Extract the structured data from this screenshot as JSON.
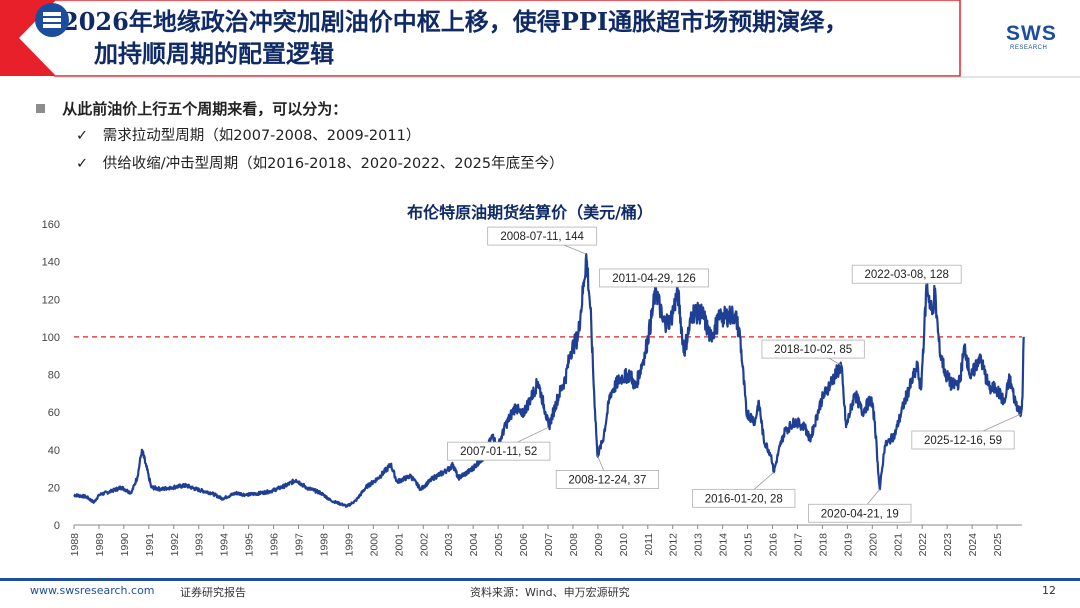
{
  "header": {
    "title_line1": "2026年地缘政治冲突加剧油价中枢上移，使得PPI通胀超市场预期演绎，",
    "title_line2": "加持顺周期的配置逻辑",
    "logo_text": "SWS",
    "logo_sub": "RESEARCH"
  },
  "bullets": {
    "main": "从此前油价上行五个周期来看，可以分为：",
    "items": [
      "需求拉动型周期（如2007-2008、2009-2011）",
      "供给收缩/冲击型周期（如2016-2018、2020-2022、2025年底至今）"
    ],
    "check": "✓"
  },
  "footer": {
    "url": "www.swsresearch.com",
    "report_type": "证券研究报告",
    "source": "资料来源：Wind、申万宏源研究",
    "page": "12"
  },
  "colors": {
    "navy": "#0f2a66",
    "line": "#1f3f95",
    "accent_red": "#e02020",
    "footer_blue": "#1f4e9c"
  },
  "chart_data": {
    "type": "line",
    "title": "布伦特原油期货结算价（美元/桶）",
    "ylim": [
      0,
      160
    ],
    "yticks": [
      0,
      20,
      40,
      60,
      80,
      100,
      120,
      140,
      160
    ],
    "xlim": [
      1988,
      2026
    ],
    "xticks": [
      "1988",
      "1989",
      "1990",
      "1991",
      "1992",
      "1993",
      "1994",
      "1995",
      "1996",
      "1997",
      "1998",
      "1999",
      "2000",
      "2001",
      "2002",
      "2003",
      "2004",
      "2005",
      "2006",
      "2007",
      "2008",
      "2009",
      "2010",
      "2011",
      "2012",
      "2013",
      "2014",
      "2015",
      "2016",
      "2017",
      "2018",
      "2019",
      "2020",
      "2021",
      "2022",
      "2023",
      "2024",
      "2025"
    ],
    "reference_line": {
      "y": 100,
      "style": "dashed",
      "color": "#e02020"
    },
    "series": [
      {
        "points": [
          [
            1988.0,
            16
          ],
          [
            1988.5,
            15
          ],
          [
            1988.8,
            12
          ],
          [
            1989.0,
            16
          ],
          [
            1989.5,
            18
          ],
          [
            1989.9,
            20
          ],
          [
            1990.3,
            17
          ],
          [
            1990.55,
            26
          ],
          [
            1990.72,
            40
          ],
          [
            1990.9,
            31
          ],
          [
            1991.1,
            20
          ],
          [
            1991.5,
            19
          ],
          [
            1991.9,
            20
          ],
          [
            1992.5,
            21
          ],
          [
            1992.9,
            19
          ],
          [
            1993.5,
            17
          ],
          [
            1993.95,
            14
          ],
          [
            1994.5,
            17
          ],
          [
            1994.9,
            16
          ],
          [
            1995.5,
            17
          ],
          [
            1995.9,
            18
          ],
          [
            1996.5,
            21
          ],
          [
            1996.9,
            24
          ],
          [
            1997.3,
            20
          ],
          [
            1997.9,
            17
          ],
          [
            1998.3,
            13
          ],
          [
            1998.95,
            10
          ],
          [
            1999.3,
            13
          ],
          [
            1999.7,
            20
          ],
          [
            2000.2,
            25
          ],
          [
            2000.7,
            32
          ],
          [
            2000.95,
            23
          ],
          [
            2001.5,
            26
          ],
          [
            2001.9,
            19
          ],
          [
            2002.4,
            25
          ],
          [
            2002.95,
            29
          ],
          [
            2003.2,
            32
          ],
          [
            2003.4,
            25
          ],
          [
            2003.9,
            29
          ],
          [
            2004.4,
            36
          ],
          [
            2004.8,
            48
          ],
          [
            2004.95,
            40
          ],
          [
            2005.3,
            53
          ],
          [
            2005.7,
            63
          ],
          [
            2005.95,
            58
          ],
          [
            2006.3,
            67
          ],
          [
            2006.6,
            76
          ],
          [
            2006.9,
            60
          ],
          [
            2007.03,
            52
          ],
          [
            2007.4,
            68
          ],
          [
            2007.7,
            78
          ],
          [
            2007.9,
            92
          ],
          [
            2008.2,
            100
          ],
          [
            2008.45,
            130
          ],
          [
            2008.53,
            144
          ],
          [
            2008.7,
            115
          ],
          [
            2008.85,
            70
          ],
          [
            2008.98,
            37
          ],
          [
            2009.2,
            45
          ],
          [
            2009.5,
            70
          ],
          [
            2009.9,
            78
          ],
          [
            2010.3,
            80
          ],
          [
            2010.5,
            73
          ],
          [
            2010.9,
            92
          ],
          [
            2011.15,
            110
          ],
          [
            2011.33,
            126
          ],
          [
            2011.6,
            108
          ],
          [
            2011.9,
            108
          ],
          [
            2012.2,
            124
          ],
          [
            2012.45,
            92
          ],
          [
            2012.8,
            113
          ],
          [
            2013.2,
            112
          ],
          [
            2013.5,
            100
          ],
          [
            2013.9,
            110
          ],
          [
            2014.5,
            112
          ],
          [
            2014.7,
            100
          ],
          [
            2014.95,
            60
          ],
          [
            2015.3,
            55
          ],
          [
            2015.45,
            66
          ],
          [
            2015.65,
            45
          ],
          [
            2015.95,
            37
          ],
          [
            2016.05,
            28
          ],
          [
            2016.3,
            42
          ],
          [
            2016.5,
            50
          ],
          [
            2016.9,
            55
          ],
          [
            2017.3,
            52
          ],
          [
            2017.5,
            45
          ],
          [
            2017.95,
            66
          ],
          [
            2018.3,
            75
          ],
          [
            2018.75,
            85
          ],
          [
            2018.95,
            52
          ],
          [
            2019.3,
            70
          ],
          [
            2019.6,
            60
          ],
          [
            2019.95,
            67
          ],
          [
            2020.1,
            55
          ],
          [
            2020.25,
            26
          ],
          [
            2020.3,
            19
          ],
          [
            2020.5,
            42
          ],
          [
            2020.9,
            48
          ],
          [
            2021.3,
            66
          ],
          [
            2021.8,
            84
          ],
          [
            2021.95,
            72
          ],
          [
            2022.18,
            128
          ],
          [
            2022.4,
            112
          ],
          [
            2022.5,
            124
          ],
          [
            2022.7,
            92
          ],
          [
            2022.95,
            80
          ],
          [
            2023.2,
            74
          ],
          [
            2023.5,
            76
          ],
          [
            2023.7,
            95
          ],
          [
            2023.95,
            78
          ],
          [
            2024.3,
            90
          ],
          [
            2024.7,
            72
          ],
          [
            2024.95,
            73
          ],
          [
            2025.3,
            65
          ],
          [
            2025.5,
            78
          ],
          [
            2025.7,
            67
          ],
          [
            2025.96,
            59
          ],
          [
            2026.02,
            68
          ],
          [
            2026.07,
            100
          ]
        ]
      }
    ],
    "annotations": [
      {
        "text": "2008-07-11, 144",
        "x": 2008.53,
        "y": 144
      },
      {
        "text": "2011-04-29, 126",
        "x": 2011.33,
        "y": 126
      },
      {
        "text": "2022-03-08, 128",
        "x": 2022.18,
        "y": 128
      },
      {
        "text": "2018-10-02, 85",
        "x": 2018.75,
        "y": 85
      },
      {
        "text": "2007-01-11, 52",
        "x": 2007.03,
        "y": 52
      },
      {
        "text": "2008-12-24, 37",
        "x": 2008.98,
        "y": 37
      },
      {
        "text": "2016-01-20, 28",
        "x": 2016.05,
        "y": 28
      },
      {
        "text": "2020-04-21, 19",
        "x": 2020.3,
        "y": 19
      },
      {
        "text": "2025-12-16, 59",
        "x": 2025.96,
        "y": 59
      }
    ]
  }
}
